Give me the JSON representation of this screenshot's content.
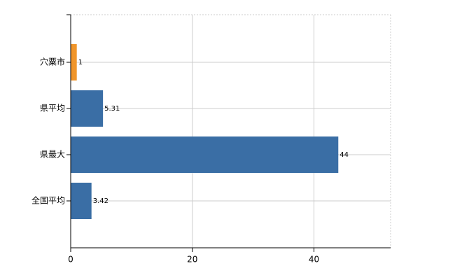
{
  "chart_data": {
    "type": "hbar",
    "categories": [
      "穴粟市",
      "県平均",
      "県最大",
      "全国平均"
    ],
    "values": [
      1,
      5.31,
      44,
      3.42
    ],
    "colors": [
      "#f0952a",
      "#3a6ea5",
      "#3a6ea5",
      "#3a6ea5"
    ],
    "xlim": [
      0,
      52.6
    ],
    "xticks": [
      0,
      20,
      40
    ],
    "grid": true
  }
}
